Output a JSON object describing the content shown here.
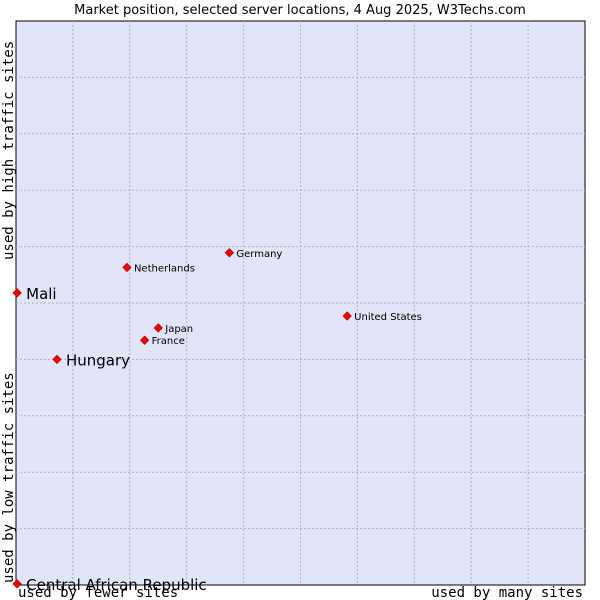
{
  "chart_data": {
    "type": "scatter",
    "title": "Market position, selected server locations, 4 Aug 2025, W3Techs.com",
    "xlabel_left": "used by fewer sites",
    "xlabel_right": "used by many sites",
    "ylabel_bottom": "used by low traffic sites",
    "ylabel_top": "used by high traffic sites",
    "xlim": [
      0,
      100
    ],
    "ylim": [
      0,
      100
    ],
    "grid": true,
    "colors": {
      "plot_bg": "#e2e4f8",
      "marker": "#ff0000",
      "marker_edge": "#990000"
    },
    "points": [
      {
        "label": "United States",
        "x": 58.2,
        "y": 47.7,
        "emphasis": false
      },
      {
        "label": "Germany",
        "x": 37.5,
        "y": 58.9,
        "emphasis": false
      },
      {
        "label": "Netherlands",
        "x": 19.5,
        "y": 56.3,
        "emphasis": false
      },
      {
        "label": "Japan",
        "x": 25.0,
        "y": 45.6,
        "emphasis": false
      },
      {
        "label": "France",
        "x": 22.6,
        "y": 43.4,
        "emphasis": false
      },
      {
        "label": "Mali",
        "x": 0.2,
        "y": 51.8,
        "emphasis": true
      },
      {
        "label": "Hungary",
        "x": 7.2,
        "y": 40.0,
        "emphasis": true
      },
      {
        "label": "Central African Republic",
        "x": 0.2,
        "y": 0.2,
        "emphasis": true
      }
    ]
  }
}
